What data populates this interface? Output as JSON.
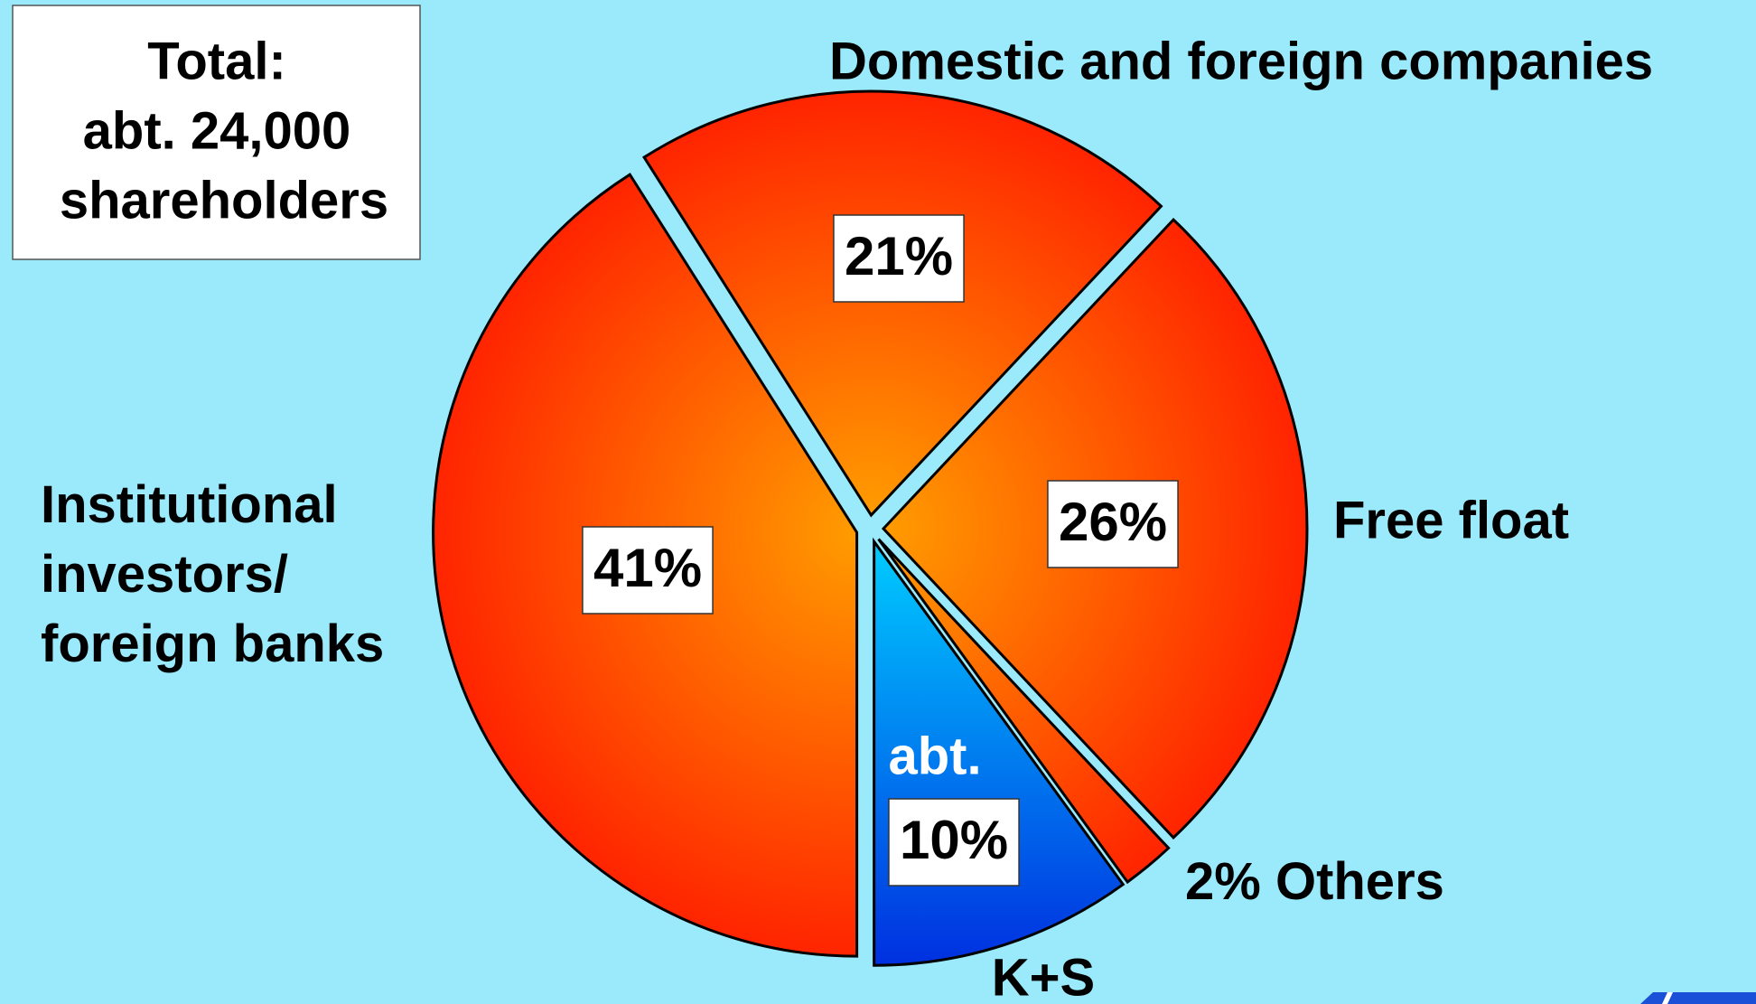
{
  "chart_data": {
    "type": "pie",
    "title": [
      "Total:",
      "abt. 24,000",
      "shareholders"
    ],
    "categories": [
      "Domestic and foreign companies",
      "Free float",
      "Others",
      "K+S",
      "Institutional investors/ foreign banks"
    ],
    "values": [
      21,
      26,
      2,
      10,
      41
    ],
    "value_labels": [
      "21%",
      "26%",
      "2%",
      "10%",
      "41%"
    ],
    "annotations": [
      "abt."
    ],
    "colors": [
      [
        "#ff9c00",
        "#ff2400"
      ],
      [
        "#ff9c00",
        "#ff2400"
      ],
      [
        "#ff9c00",
        "#ff2400"
      ],
      [
        "#00ccff",
        "#0030e0"
      ],
      [
        "#ff9c00",
        "#ff2400"
      ]
    ]
  }
}
